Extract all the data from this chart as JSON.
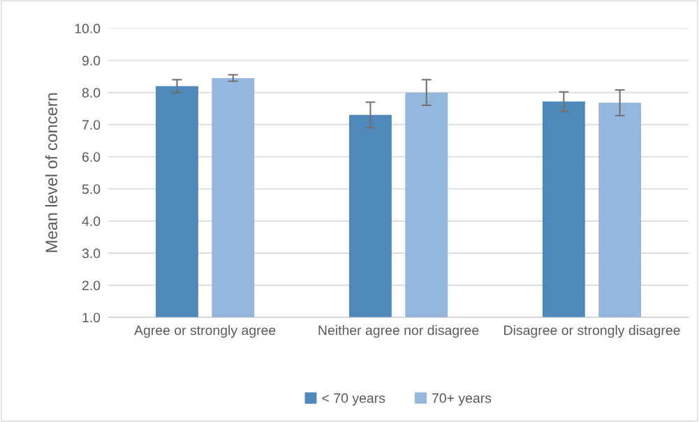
{
  "chart_data": {
    "type": "bar",
    "ylabel": "Mean level of concern",
    "categories": [
      "Agree or strongly agree",
      "Neither agree nor disagree",
      "Disagree or strongly disagree"
    ],
    "series": [
      {
        "name": "< 70 years",
        "color": "#4f88bb",
        "values": [
          8.2,
          7.3,
          7.72
        ],
        "errors": [
          0.2,
          0.4,
          0.3
        ]
      },
      {
        "name": "70+ years",
        "color": "#95b7de",
        "values": [
          8.45,
          8.0,
          7.68
        ],
        "errors": [
          0.1,
          0.4,
          0.4
        ]
      }
    ],
    "ylim": [
      1.0,
      10.0
    ],
    "yticks": [
      {
        "value": 1,
        "label": "1.0"
      },
      {
        "value": 2,
        "label": "2.0"
      },
      {
        "value": 3,
        "label": "3.0"
      },
      {
        "value": 4,
        "label": "4.0"
      },
      {
        "value": 5,
        "label": "5.0"
      },
      {
        "value": 6,
        "label": "6.0"
      },
      {
        "value": 7,
        "label": "7.0"
      },
      {
        "value": 8,
        "label": "8.0"
      },
      {
        "value": 9,
        "label": "9.0"
      },
      {
        "value": 10,
        "label": "10.0"
      }
    ],
    "grid": "y",
    "legend": "bottom"
  }
}
